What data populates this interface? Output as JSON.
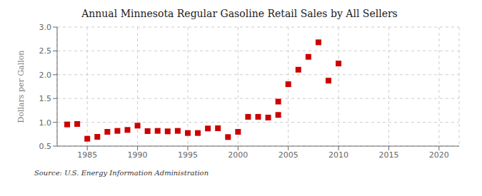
{
  "chart_data": {
    "type": "scatter",
    "title": "Annual Minnesota Regular Gasoline Retail Sales by All Sellers",
    "ylabel": "Dollars per Gallon",
    "source": "Source: U.S. Energy Information Administration",
    "x": [
      1983,
      1984,
      1985,
      1986,
      1987,
      1988,
      1989,
      1990,
      1991,
      1992,
      1993,
      1994,
      1995,
      1996,
      1997,
      1998,
      1999,
      2000,
      2001,
      2002,
      2003,
      2004,
      2005,
      2006,
      2007,
      2008,
      2009,
      2010,
      2004
    ],
    "values": [
      0.955,
      0.965,
      0.655,
      0.695,
      0.8,
      0.82,
      0.84,
      0.93,
      0.815,
      0.82,
      0.81,
      0.82,
      0.775,
      0.775,
      0.87,
      0.875,
      0.69,
      0.8,
      1.115,
      1.115,
      1.1,
      1.435,
      1.8,
      2.105,
      2.375,
      2.68,
      1.875,
      2.235,
      1.155
    ],
    "color": "#cc0000",
    "marker": "square",
    "xlim": [
      1982,
      2022
    ],
    "ylim": [
      0.5,
      3.0
    ],
    "xticks": [
      1985,
      1990,
      1995,
      2000,
      2005,
      2010,
      2015,
      2020
    ],
    "yticks": [
      0.5,
      {
        "value": 1,
        "label": "1.0"
      },
      1.5,
      {
        "value": 2,
        "label": "2.0"
      },
      2.5,
      {
        "value": 3,
        "label": "3.0"
      }
    ],
    "grid": true
  }
}
